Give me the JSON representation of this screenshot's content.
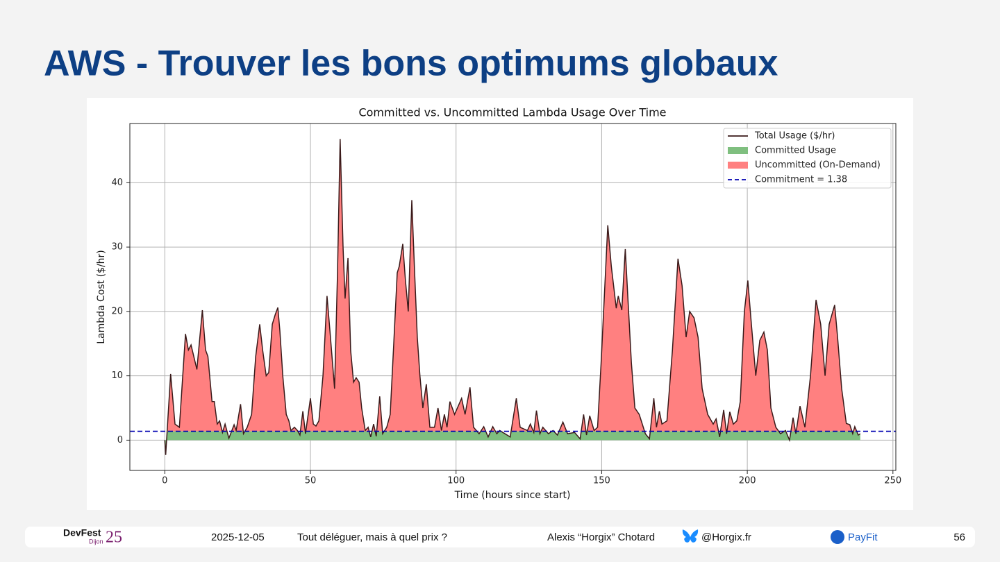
{
  "slide": {
    "title": "AWS - Trouver les bons optimums globaux"
  },
  "footer": {
    "logo": "DevFest",
    "logo_city": "Dijon",
    "logo_year": "25",
    "date": "2025-12-05",
    "talk": "Tout déléguer, mais à quel prix ?",
    "author": "Alexis “Horgix” Chotard",
    "handle": "@Horgix.fr",
    "company": "PayFit",
    "page": "56"
  },
  "chart_data": {
    "type": "line",
    "title": "Committed vs. Uncommitted Lambda Usage Over Time",
    "x_label": "Time (hours since start)",
    "y_label": "Lambda Cost ($/hr)",
    "xlim": [
      -12,
      251
    ],
    "ylim": [
      -4.7,
      49.2
    ],
    "xticks": [
      0,
      50,
      100,
      150,
      200,
      250
    ],
    "yticks": [
      0,
      10,
      20,
      30,
      40
    ],
    "grid": true,
    "legend": "upper right",
    "committed": {
      "name": "Committed Usage",
      "color": "#7fbf7f"
    },
    "uncommitted": {
      "name": "Uncommitted (On-Demand)",
      "color": "#ff8080"
    },
    "commitment": {
      "label": "Commitment = 1.38",
      "value": 1.38,
      "color": "#0000b0"
    },
    "series": [
      {
        "name": "Total Usage ($/hr)",
        "color": "#3a1a1a",
        "x": [
          0,
          0.3,
          2,
          3.5,
          5,
          7.1,
          8.1,
          9,
          11,
          12.9,
          14,
          14.8,
          16.2,
          17,
          18,
          18.8,
          19.8,
          20.7,
          22,
          23.8,
          24.5,
          26,
          27,
          28.3,
          29.8,
          31.2,
          32.6,
          33.6,
          34.8,
          35.7,
          36.9,
          37.9,
          38.8,
          39.5,
          40.5,
          41.7,
          42.6,
          43.3,
          44.5,
          45.5,
          46.4,
          47.4,
          48.3,
          50,
          51,
          51.9,
          52.9,
          54.3,
          55.7,
          56.7,
          58.3,
          59.3,
          60.2,
          61.2,
          61.9,
          62.9,
          63.8,
          64.8,
          65.7,
          66.7,
          67.6,
          68.8,
          69.8,
          70.7,
          71.7,
          72.6,
          73.8,
          74.8,
          76.2,
          77.4,
          78.6,
          79.8,
          80.5,
          81.7,
          82.6,
          83.6,
          84.8,
          85.7,
          86.7,
          87.6,
          88.6,
          89.8,
          91,
          92.6,
          93.8,
          95,
          96,
          96.9,
          97.9,
          99.5,
          101.9,
          103.1,
          104.8,
          106,
          107.9,
          109.5,
          111,
          112.6,
          114,
          115,
          118.6,
          120.7,
          122,
          124.5,
          125.5,
          126.7,
          127.6,
          128.8,
          129.8,
          131.7,
          133.3,
          134.8,
          136.7,
          138.3,
          140.7,
          142.6,
          143.8,
          144.8,
          145.9,
          147.4,
          148.6,
          149.8,
          152.1,
          153.3,
          155,
          155.7,
          156.9,
          158.1,
          159,
          160.2,
          161.4,
          162.9,
          165,
          166.4,
          167.9,
          168.8,
          169.8,
          170.7,
          172.4,
          174.3,
          176.2,
          177.6,
          179,
          180.2,
          181.7,
          183.1,
          184.5,
          186.4,
          188.3,
          189.3,
          190.5,
          191.9,
          192.9,
          194,
          195.2,
          196.4,
          197.6,
          199,
          200.2,
          201.4,
          202.9,
          204.3,
          205.7,
          206.9,
          208.1,
          209.8,
          211.4,
          213.1,
          214.5,
          215.7,
          216.7,
          218.1,
          219.8,
          221.7,
          223.6,
          225.2,
          226.7,
          228.1,
          230,
          231,
          232.4,
          234,
          235.2,
          236.2,
          236.9,
          238.1,
          238.8
        ],
        "values": [
          0,
          -2.3,
          10.3,
          2.5,
          2,
          16.5,
          14,
          14.8,
          11,
          20.2,
          14,
          13,
          6,
          6,
          2.5,
          3,
          1.2,
          2.5,
          0.3,
          2.4,
          1.5,
          5.6,
          1,
          2,
          4,
          13,
          18,
          14,
          10,
          10.5,
          18,
          19.5,
          20.6,
          17,
          10,
          4,
          3,
          1.5,
          2,
          1.5,
          0.8,
          4.5,
          1,
          6.5,
          2.5,
          2.2,
          3,
          10,
          22.4,
          17,
          8,
          26,
          46.8,
          30,
          22,
          28.3,
          14,
          9,
          9.7,
          9,
          5,
          1.5,
          2,
          0.5,
          2.5,
          0.6,
          6.8,
          1,
          2,
          4,
          15,
          26,
          27,
          30.5,
          25,
          20,
          37.3,
          27,
          16,
          10,
          5,
          8.7,
          2,
          2,
          5,
          1.5,
          4,
          2,
          6,
          4,
          6.5,
          4,
          8.2,
          2,
          1,
          2.1,
          0.5,
          2.1,
          1,
          1.5,
          0.5,
          6.5,
          2,
          1.5,
          2.5,
          1.2,
          4.6,
          1,
          2,
          1,
          1.5,
          0.8,
          2.8,
          1,
          1.2,
          0.2,
          4,
          0.8,
          3.8,
          1.5,
          2,
          12,
          33.4,
          27,
          20.5,
          22.4,
          20.2,
          29.7,
          22,
          12,
          5,
          4,
          1,
          0.2,
          6.5,
          2,
          4.5,
          2.5,
          3,
          14,
          28.2,
          24,
          16,
          20,
          19,
          16,
          8,
          4,
          2.5,
          3.3,
          0.5,
          4.7,
          1,
          4.4,
          2.5,
          3,
          6,
          20,
          24.8,
          18,
          10,
          15.5,
          16.8,
          14,
          5,
          2,
          1,
          1.5,
          0,
          3.5,
          1,
          5.3,
          2,
          10,
          21.8,
          18,
          10,
          18,
          21,
          16,
          8,
          2.6,
          2.4,
          1,
          2.1,
          0.8,
          1
        ]
      }
    ]
  }
}
